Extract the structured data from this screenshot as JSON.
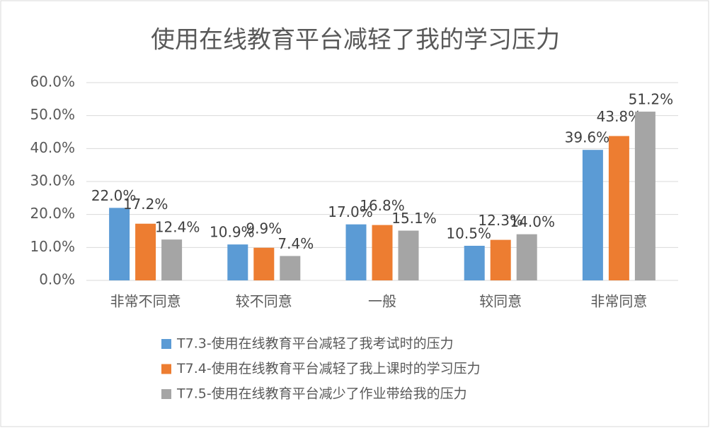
{
  "chart_data": {
    "type": "bar",
    "title": "使用在线教育平台减轻了我的学习压力",
    "categories": [
      "非常不同意",
      "较不同意",
      "一般",
      "较同意",
      "非常同意"
    ],
    "series": [
      {
        "name": "T7.3-使用在线教育平台减轻了我考试时的压力",
        "color": "#5b9bd5",
        "values": [
          22.0,
          10.9,
          17.0,
          10.5,
          39.6
        ],
        "value_labels": [
          "22.0%",
          "10.9%",
          "17.0%",
          "10.5%",
          "39.6%"
        ]
      },
      {
        "name": "T7.4-使用在线教育平台减轻了我上课时的学习压力",
        "color": "#ed7d31",
        "values": [
          17.2,
          9.9,
          16.8,
          12.3,
          43.8
        ],
        "value_labels": [
          "17.2%",
          "9.9%",
          "16.8%",
          "12.3%",
          "43.8%"
        ]
      },
      {
        "name": "T7.5-使用在线教育平台减少了作业带给我的压力",
        "color": "#a5a5a5",
        "values": [
          12.4,
          7.4,
          15.1,
          14.0,
          51.2
        ],
        "value_labels": [
          "12.4%",
          "7.4%",
          "15.1%",
          "14.0%",
          "51.2%"
        ]
      }
    ],
    "ylim": [
      0,
      60
    ],
    "yticks": [
      {
        "value": 0,
        "label": "0.0%"
      },
      {
        "value": 10,
        "label": "10.0%"
      },
      {
        "value": 20,
        "label": "20.0%"
      },
      {
        "value": 30,
        "label": "30.0%"
      },
      {
        "value": 40,
        "label": "40.0%"
      },
      {
        "value": 50,
        "label": "50.0%"
      },
      {
        "value": 60,
        "label": "60.0%"
      }
    ],
    "grid": true,
    "legend": "bottom"
  }
}
